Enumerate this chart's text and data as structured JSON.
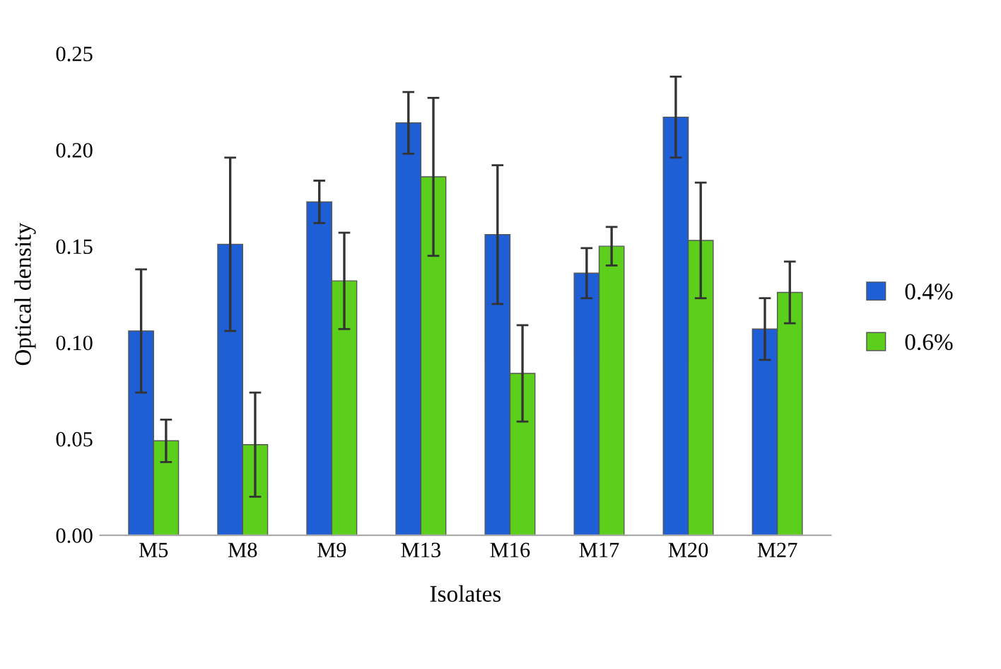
{
  "chart_data": {
    "type": "bar",
    "xlabel": "Isolates",
    "ylabel": "Optical density",
    "categories": [
      "M5",
      "M8",
      "M9",
      "M13",
      "M16",
      "M17",
      "M20",
      "M27"
    ],
    "series": [
      {
        "name": "0.4%",
        "color": "#1f5fd6",
        "values": [
          0.106,
          0.151,
          0.173,
          0.214,
          0.156,
          0.136,
          0.217,
          0.107
        ],
        "errors": [
          0.032,
          0.045,
          0.011,
          0.016,
          0.036,
          0.013,
          0.021,
          0.016
        ]
      },
      {
        "name": "0.6%",
        "color": "#5ccf1c",
        "values": [
          0.049,
          0.047,
          0.132,
          0.186,
          0.084,
          0.15,
          0.153,
          0.126
        ],
        "errors": [
          0.011,
          0.027,
          0.025,
          0.041,
          0.025,
          0.01,
          0.03,
          0.016
        ]
      }
    ],
    "ylim": [
      0,
      0.25
    ],
    "yticks": [
      {
        "value": 0,
        "label": "0.00"
      },
      {
        "value": 0.05,
        "label": "0.05"
      },
      {
        "value": 0.1,
        "label": "0.10"
      },
      {
        "value": 0.15,
        "label": "0.15"
      },
      {
        "value": 0.2,
        "label": "0.20"
      },
      {
        "value": 0.25,
        "label": "0.25"
      }
    ],
    "grid": false,
    "legend": "right"
  }
}
